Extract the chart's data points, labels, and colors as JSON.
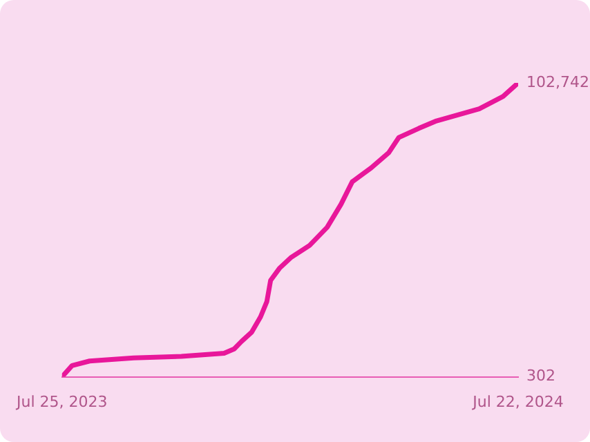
{
  "chart_data": {
    "type": "line",
    "x": [
      "2023-07-25",
      "2023-08-02",
      "2023-08-16",
      "2023-09-20",
      "2023-10-28",
      "2023-12-01",
      "2023-12-09",
      "2023-12-15",
      "2023-12-23",
      "2023-12-30",
      "2024-01-04",
      "2024-01-07",
      "2024-01-14",
      "2024-01-23",
      "2024-02-07",
      "2024-02-21",
      "2024-03-03",
      "2024-03-12",
      "2024-03-27",
      "2024-04-10",
      "2024-04-18",
      "2024-05-04",
      "2024-05-18",
      "2024-06-21",
      "2024-07-10",
      "2024-07-22"
    ],
    "series": [
      {
        "color": "#e8179a",
        "values": [
          302,
          4200,
          5800,
          6900,
          7400,
          8500,
          10000,
          12700,
          15900,
          21200,
          26500,
          33900,
          38100,
          41800,
          46100,
          52400,
          60400,
          68300,
          73100,
          78400,
          83700,
          86900,
          89500,
          93700,
          98000,
          102742
        ]
      }
    ],
    "xlim": [
      "2023-07-25",
      "2024-07-22"
    ],
    "xticks": [
      {
        "value": "2023-07-25",
        "label": "Jul 25, 2023"
      },
      {
        "value": "2024-07-22",
        "label": "Jul 22, 2024"
      }
    ],
    "ylim": [
      302,
      102742
    ],
    "yticks": [
      {
        "value": 302,
        "label": "302"
      },
      {
        "value": 102742,
        "label": "102,742"
      }
    ],
    "grid": false,
    "legend": false,
    "marker": "none",
    "line_style": "solid"
  }
}
